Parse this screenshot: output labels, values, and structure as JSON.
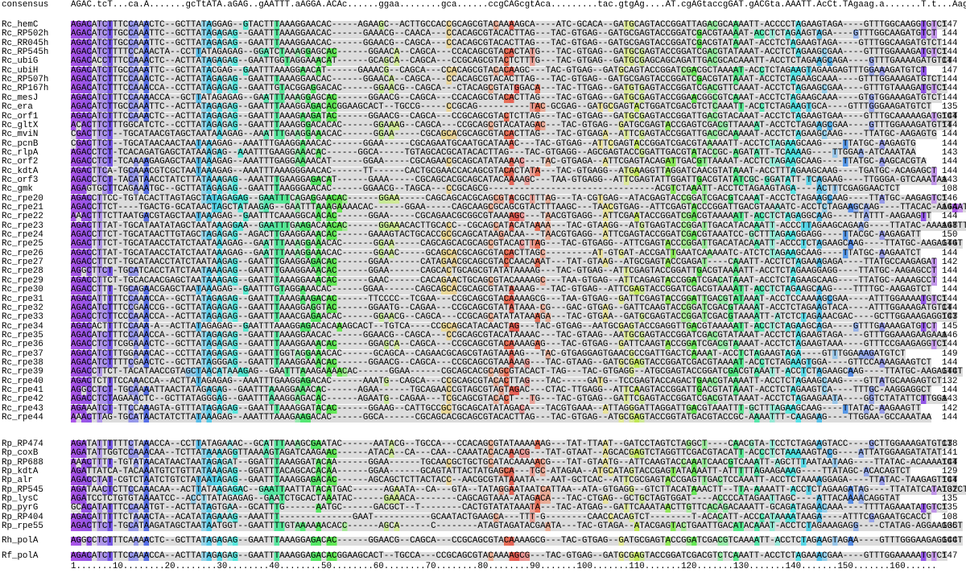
{
  "consensus": {
    "name": "consensus",
    "seq": "AGAC.tcT...ca.A.......gcTtATA.aGAG..gAATTT.aAGGA.ACAc......ggaa........gca......ccgCAGcgtAca.........tac.gtgAg....AT.cgAGtaccgGAT.gACGta.AAATT.AcCt.TAgaag.a.......T.t...Aaga.gtct"
  },
  "groups": [
    {
      "rows": [
        {
          "name": "Rc_hemC",
          "seq": "AGACATCTTTCCAAACTC--GCTTATAGGAG--GTACTTTAAAGGAACAC-----AGAAGC--ACTTGCCACCGCAGCGTACAAAAGCA----ATC-GCACA--GATGCAGTACCGGATTAGACGCAAAATT-ACCCCTAGAAGTAGA----GTTTGGCAAGGTGTCT",
          "length": "147"
        },
        {
          "name": "Rc_RP502h",
          "seq": "AGACATCTTGCCAAATTC--GCTTATAGAGAG--GAATTTAAAGGAACAC------GAAACG--CAACA---CCACAGCGTACACTTAG---TAC-GTGAG--GATGCGAGTACCGGATCGACGTAAAAT-ACCTCTAGAAGTAGA----GTTTGGCAAGATGTCT",
          "length": "144"
        },
        {
          "name": "Rc_RR045h",
          "seq": "AGACATCTTGCCAAATTC--GCTTATAGAGAG--GAATTTAAAGGAACAC------GGAACG--CAGCA---CCACAGCGTACACTTAG---TAC-GTGAG--GATGCGAGTACCGGATCGACGTATAAAT-ACCTCTAGAAGTAGA----GTTTGGCAAGATGTCT",
          "length": "144"
        },
        {
          "name": "Rc_RP545h",
          "seq": "AGACATCTTTTCCAAACTA--CCTTATAGAGAG--GGATCTAAAGGAGCAC------GGAACA--CAGCA---CCACAGCGTACACTATG---TAC-GTGAG--GATGCGAGTACCGGATCGACGTATAAAT-ACCTCTAGAAGCGAA----GTTTGGAAAGATGTCT",
          "length": "144"
        },
        {
          "name": "Rc_ubiG",
          "seq": "AGACACCTTTCCAAACTC--ACTTATAGAGAG--GAATTGGTAGGAAACAT------GCAGCA--CAGCA---CCGCAGCGTACTCTTTG---TAC-GTGAG--GATGCGAGCAGCAGATTGACGCACAAATT-ACCTCTAGAAGCAGA----GTTTGAAAAGATGTCT",
          "length": "144"
        },
        {
          "name": "Rc_ubiH",
          "seq": "AGACATCTTGCCAAATTC--GCTTATACGAG--GAATTTAAAGGAACAT------GAAACG--CAGCA---CCACAGCGTACACAAGC---TAC-GTGAG--GATGCAGTACCGGATCGACGCTAAAAT-ACCTCTAGAAGTAGAAGAGTTTGGAAAGATGTCT",
          "length": "147"
        },
        {
          "name": "Rc_RP507h",
          "seq": "AGACATCTTTCCAAACTC--ACTTATAGAGAG--GAATTTAAAGGAACAC------GGAACA--CAGCA---CCACAGCGTACACTTAG---TAC-GTGAG--GATGCGAGTACCGGATCGACGTATAAAT-ACCTCTAGAAGCAAA----GTTTGGAAAGATGTCT",
          "length": "144"
        },
        {
          "name": "Rc_RP167h",
          "seq": "AGACATCTTTCCAAACCA--CCTTATAGAGAG--GAATTGTACGGAGGACAC------GGAACG--CAGCA---CTACAGCGTATGGACA---TAC-TTGAG--GATGTGAGTACCGGATCGACGTTCAAAT-ACCTCTAGAAGCGAA----GTTTGTAAAGATGTCT",
          "length": "144"
        },
        {
          "name": "Rc_mesJ",
          "seq": "AGACATCTTTCCAAAACCA--GCTTATAGAGAG--GAATTTAAAGGAGCAC------GGAACG--CAGCA---CCACAGCGTACACTTAG---TAC-GTGAG--GATGCGAGTACCGGAACGGCGTCAAAT-ACCTCTAGAAGCAAA----GTGTGGAAAGATGTCT",
          "length": "144"
        },
        {
          "name": "Rc_era",
          "seq": "AGACATCTTGCCAAATTC--ACTTATAGAGAG--GAATTTAAAGGAGACACGGAAGCACT--TGCCG-----CCGCAG----------TAC-GCGAG--GATGCGAGTACTGGATCGACGTCTCAAATT-ACCTCTAGAAGTGCA----GTTTGGGAAGATGTCT",
          "length": "135"
        },
        {
          "name": "Rc_orf1",
          "seq": "AGACATCTTTCCAAACTC--ACTTATAGAGAG--GAATTTAAAGAAGATAC------GGAACG--CAGCA---CCGCAGCGTACTCTTAG---TAC-GTGAG--GATGCGAGTACCGGATTGACGTACAAAT-ACCTCTAGAAGTGAA----GTTTGCAAAAAGATGTCT",
          "length": "144"
        },
        {
          "name": "Rc_gltX",
          "seq": "ACACTTCTTTGGCATCTC--CCTTATAGAGAG--GAATTTAAAGGGACACAC------GGAAAG--CAGCA---CCGCAGCGTACATAGAC---TAC-GTGAG--GATGCGAGTACCGAGTCGACGTTAAAAT-ACCTCTAGAAGCGAA----GTTTGGAAAGATGTTT",
          "length": "144"
        },
        {
          "name": "Rc_mviN",
          "seq": "CGACTTCT--TGCATAACGTAGCTAATAAAGAG--AAATTTGAAGGAAACAC------GGAA-----CGCAGCACGCAGCGTACACTTAG---TAC-GTGAGA--ATTCGAGTACCGGATTGACGCAAAAAT-ACCTCTAGAAGCAAG----TTATGC-AAGAGTG",
          "length": "144"
        },
        {
          "name": "Rc_pcnB",
          "seq": "CGACTTCT--TGCATAACAACTAATAAAGAG--AAATTTGAAGGAAACAC------GGAA-----CGCAGAATGCAATGCATAAAC---TAC-GTGAG--ATTCGAGTACCGGATCGACGTAAAAATT-ACCTCTAGAAGCAAG----TTATGC-AAGAGTG",
          "length": "144"
        },
        {
          "name": "Rc_rlpA",
          "seq": "AGACCTCT-TCACAGATGAGCTATAAAGAG--AAATTTGAAGGAAACAC------GGCA-----TGTAGCACGCATACACTTAG---TAC-GTGAGG--AGCGAGTACCGGATTGACGTATACCGC-AGATATT-TCAAAAG----TTGGAA-ATCAAATAA",
          "length": "143"
        },
        {
          "name": "Rc_orf2",
          "seq": "AGACCTCT-TCAAAAGAGAGCTAATAAAGAG--AAATTTGAGGAAAACAT------GGAA-----CGCAGAACGCAGCATATAAAAC---TAC-GTGAGA--ATTCGAGTACAGATTGACGTTAAAAT-ACCTCTAGAAGCAAG----TTATGC-AAGCACGTA",
          "length": "144"
        },
        {
          "name": "Rc_kdtA",
          "seq": "AGACTTCA-TGCAAACGTCGCTAATAAAGAG--AAATTTAAAGGGAACAC------TT------CACTGCGAACCACAGCGTACACTATA---TAC-GTGAGG--ATGAAGGTTAGGATCAACGTATAAAT-ACCTTTAGAAGCAAG----TGATGC-ACAGAGCT",
          "length": "144"
        },
        {
          "name": "Rc_orf3",
          "seq": "AGACCTCT-TACATAACCTATCTTATAAAGAG--AAATTTGAAGGAGACAT------GAAA-----CGCAGCACGCAGCATACAAAAGC---TAA-GTGAGG--ATTCGAGTATTGGATTGACGTATATCGC-GGATATT-TCAGAAG----TTGGGA-GTCAAATAA",
          "length": "143"
        },
        {
          "name": "Rc_gmk",
          "seq": "AGAGTGCTTCAGAAATGC--GCTTATAGAGAG--GAATTTAAGGGAACAC------GGAACG--TAGCA---CCGCAGCG--------------------------------ACGTCTAAATT-ACCTCTAGAAGTAGA----ACTTTCGAGGAACTCT",
          "length": "108"
        },
        {
          "name": "Rc_rpe20",
          "seq": "AGACCTTCC-TGTACACTTAGTAGCTATAGAGAG--GAATTTCAGAGGAACAC------GGAA-----CAGCAGCACGCAGCGTACGCTTTAG---TA-CGTGAG--ATACGAGTACCGGATCGACGTCAAAT-ACCTCTAGAAGCAAG----TTATGC-AAGAGTCT",
          "length": "146"
        },
        {
          "name": "Rc_rpe21",
          "seq": "AGACCTTCT----TGACTG-GCATAACTAGCTATAAGAG--GAATTTAAAGAAAACAC------GGAA-----CAGCAAGCGCAGCGTACTTTAAGC---TAACGTGAG--ATTCGAGTACCCGGATTGACGTAAAATC-ACCTCTAGAAGCAAG----TTACAC-AAGAATGT",
          "length": "144"
        },
        {
          "name": "Rc_rpe22",
          "seq": "AAACTTTCTTAATGACGTAGCTAATAAAGAG--GAATTTCAAAGGCAACAC------GGAA-----CGCAGAACGCGGCGTAAAAGC---TAACGTGAGG--ATTCGAATACCGGATCGACGTAAAAATT-ACCTCTAGAGGCAAG----TTATTT-AAGAAGTT",
          "length": "144"
        },
        {
          "name": "Rc_rpe23",
          "seq": "AGACTTTAT-TGCATAATATAGCTAATAAAGGAA--GAATTTGAAGACAACAC------GGAAACACTTGCACC--CGCAGCATACATAAAA---TAC-GTAAGG--ATGTGAGTACCGGATTGACATACAAATT-ACCCTTAGAAGCAGAAG----TTATAC-AAAAGTTT",
          "length": "148"
        },
        {
          "name": "Rc_rpe24",
          "seq": "AGACCTTCT-TGCATAACTTGTAGCTAGAGAG--AGACTTGAAGGAAACAC------GAAAGTACTGCACCGCGCAGCATAAGACAA---TAACGTGAGG--ATTCGAGTACCGGATCGACGTAAATCC-GCTTTAGAAGGAGG----TTACGC-AAGAGATT",
          "length": "150"
        },
        {
          "name": "Rc_rpe25",
          "seq": "AGACTTTCT-TGCATAACCTATCTAATAAAGAG--GAATTTAAAGGAAACAC------GGAA-----CAGCAGCACGCAGCGTACACTTAG---TAC-GTGAGG--ATTCGAGTACCCGGATTGACATACAAATT-ACCCTCTAGAAGCAAG----TTATGC-AAGAGTGT",
          "length": "144"
        },
        {
          "name": "Rc_rpe26",
          "seq": "AGACCTTAT-TGCATAACCTATCTAATAAAGAG--GAATTTAAAGGAAACAC------GGAAC-----GCAGCACGCAGCGTACACTTAGC---------AT-GTGAT-ACCGATTGAATCAAAAATC-ATCTCTAGAAGCAAG----TTATGC-AAGAATCT",
          "length": "144"
        },
        {
          "name": "Rc_rpe27",
          "seq": "AGACCTTCT-TGCATAACCTATCTAATAAGAG--GAATTTGAAGGAGACAC------GGAA------CATAGAACGCAGCGTACCAACAAAT---TAT-GTAAG--ATGCGAGTACCGAGAT----CAAATT-ACCTCTAGAAAGAGA----TTATGCCAAGAGAT",
          "length": "142"
        },
        {
          "name": "Rc_rpe28",
          "seq": "AGGCTTCT-TGCATCACCTATCTAATAAAGAG--GAATTTGAAGGAAACAC------GGAA------CAGCACTGCAGCGTATATAAAAG---TAC-GTGAG--ATTCGAGTACCGGATTGACGTAAAATT-ACCTCTAGAAGGAGG----TTATGC-AAGAGCCT",
          "length": "144"
        },
        {
          "name": "Rc_rpe29",
          "seq": "AGACCTTCT-TGCACAACGAGCTAATAAAGAG--GAATTTAAAGGAAACAC------GAAC------CACAGAACTGCAGCGTACAAAAGC---TAA-GTGAG--ATTCAGAGTACCGGATCGACATAAAT-ACCTCTAGAAGCAAG----TTATGC-AAAAGCCT",
          "length": "144"
        },
        {
          "name": "Rc_rpe30",
          "seq": "AGACCTTT-TGCAGAACGAGCTAATAAAGAG--GAATTTGTAGGAAACAC------GGAA------CAGCAGCACGCAGCGTATAAAAG---TAC-GTGAG--ATTCGAGTACCGGATCGACGTAAAATT-ACCTCTAGAAGCAAG----TTTTGC-AAGAGTCT",
          "length": "144"
        },
        {
          "name": "Rc_rpe31",
          "seq": "AGACATTTTTCCAAACCA--GCTTATAGAGAG--GAATTTAAAGAAGACAC------TTCCCC--TCGAA---CCGCAGCGTACAAAAGCG---TAA-GTGAG--GATTCGAGTACCGGATTGACGTATAAAT-ACCTCCAAAAGCGAA----ATTTGGAAAATGTCT",
          "length": "144"
        },
        {
          "name": "Rc_rpe32",
          "seq": "AGACATCTTTCCGAACCG--GCTTATAGAGAG--GAATTTAAAGGAGGTAC------GGAATG--CAGAA---CCGCAGCGTATATAAA-CG---GAC-GTGAG--GATTCAAGTACCGGATCGACGTAAAAT-ACCTCTAGAAGTACA----ATTTGGAAAGATGTCT",
          "length": "144"
        },
        {
          "name": "Rc_rpe33",
          "seq": "AGACCTCTTCCCAAACCA--ACTTATAGAGAG--GAATTTAAACGAGAACAC------GGAACG--CAGCA---CCGCAGCATATATAAAGA---TAC-GTGAA--GATGCGAGTACCGGATCGACGTAAAATT-ATCTCTAGAAACGAC----GCTTGGAAAGAGGTCT",
          "length": "143"
        },
        {
          "name": "Rc_rpe34",
          "seq": "AGACACTTTTCCAAA-A--ACTTATAGAGAG--GAATTTAAAGGAGACACAAAGCACT--TGTCA----CCGCAGCATACAACTAG---TAC-GTGAG--AATGCGAGTACCGAGGTTGACGTAAAAATT-ACCTCTAGAAGCAGA----GTTTGAAAAGATGTCT",
          "length": "145"
        },
        {
          "name": "Rc_rpe35",
          "seq": "AGACATCTTTCCAAACCA--GCTTATAGAGAG--GAATTTAAAGGAACAC------GGAACG--CAGCA---CCGCAGCGTACATAAAAC---TAC-GTAAG--AATGCGAGTACCGGATCGACGTATAAAT-ACCTCTAGAAGTAGA----GTTTGGAAAGAAGAAA",
          "length": "146"
        },
        {
          "name": "Rc_rpe36",
          "seq": "AGACCTCTTCGGAAACTC--GCTTATAGAGAG--GAATTTAAAGGAAACAC------GGAGCA--CAGCA---CCGCAGCGTACAAAAGAG---TAC-GTGAG--GATTCAAGTACCGGATCGACGTAAAAT-ACCTCTAGAAGTAAA----GTTTCCGAAGAGGTCT",
          "length": "144"
        },
        {
          "name": "Rc_rpe37",
          "seq": "AGACATCTTTGGAAACAC--CCTTATAGAGAG--GAATTTGGTAGGAAACAC------GCAGCA--CAGAACGCAGCGTAGTAAAAG---TAC-GTGAGGAGTGAACGCCGATTGACTCAAAAT-ACCTCTAGAAGTAGA----GTTTGGAAAGATGTCT",
          "length": "149"
        },
        {
          "name": "Rc_rpe38",
          "seq": "AGACATCTTTTCGAACTC--GCTTATAGGGAG--GAATTTAAAGGAAACAC------GGAACG--CAGCA---CCGCAGCGTAAAAAG---TAC-GTAAG--GATGCGAGTACCGGATCGACGTAAAAT-ACCTCTAGAAGTGGA----GTTCCAAAAGAAGTCT",
          "length": "144"
        },
        {
          "name": "Rc_rpe39",
          "seq": "AGACCTTCT-TACATAACCGTAGCTAACATAAAGAG--GAATTTAAAGAAAACAC------GGAA------CGCAGCACGCAGCGTACACT-TAG---TAC-GTGAGG--ATGCGAGTACCGGATCGACGTAAATT-ACCTCTAGAAGCAAG----TTATGC-AAGAGTCT",
          "length": "144"
        },
        {
          "name": "Rc_rpe40",
          "seq": "AGACTCTTTCCAAACCA--ACTTATAGAGAG--AAATTTGAAGGAGACAC------AAATG--CAGCA---CCGCAGCGTACACTTAG---TAC-----GATG--TCCGAGTACCAGACTGAACGTAAAATT-ACCTCTAGAAGCAAG----GTTATGCAAGAGTCT",
          "length": "132"
        },
        {
          "name": "Rc_rpe41",
          "seq": "AGGCCTCT-TGCAAAATTAACTATAGAGAG--GAATTTAAAGGAAACAC------AGAA------TGCAGAACCGTAGCGTAGTAGAC---CTAC-TTGAGG--ATTCAAGTACCGGATTGACGTATAAAT-ACCTCTAGAAGTCA----TTTGC-AAGGAGGCT",
          "length": "144"
        },
        {
          "name": "Rc_rpe42",
          "seq": "AGACCTCTAGAAACTC--GCTTATAGGGAG--GAATTTAAAGGAGACAC------AGAATG--CAGAA---TCGCAGCGTACACT---TG---TAC-GTGAG--GATTCGAGTACCGGATCGACGTATAAAT-ACCTCTAGAAGAATA----GGTCTATATTCTTGGA",
          "length": "143"
        },
        {
          "name": "Rc_rpe43",
          "seq": "AGAAATCT-TTCCAAAGTA-GTTTATAGAGAG--GAATTTAAAGGATACAC------GGAAG--CATTGCCGCTGCAGCATATAGACA---TACGTGAAA--ATTAGGGATTAGGATTGACGTAAATTT-GCTTTAGAAGCAAG----TTATAC-AAGAAGTT",
          "length": "142"
        },
        {
          "name": "Rc_rpe44",
          "seq": "AAACTTAG-TGCATAACTATCTTATAAAGAG--AAATTTAAAGAAGACAC------GGCA------CGCAGCACGCAGCGTACACTTAG---TAC-GTGAG--ATGCGAGTACCGGTATGACGTACCGC-AAAATTT-CAAGAAG----TTGGAA-GCCAAATAA",
          "length": "144"
        }
      ]
    },
    {
      "rows": [
        {
          "name": "Rp_RP474",
          "seq": "AGATATTTTTTCTAAACCA--CCTTATAGAAAC--GCATTTAAAGCGAATAC------AATACG--TGCCA---CCACAGCGTATAAAAAAG---TAT-TTAAT--GATCCTAGTCTAGGCT----CAACGTA-TCCTCTAGAAGTACC----GCTTGGAAAGATGTCT",
          "length": "138"
        },
        {
          "name": "Rp_coxB",
          "seq": "AGATATTGGTCCAAACAA--TCTTATAAAAGGTTAAAAGTAGATCAAGAAC------ATACA--CA---CAA--CAAATACACAAACG---TAT-GTAAT--AGCACGAGTCTAGGTTCGACGTACATT-ACCCTCTAAAAAGTACG----ATTATGGAAGATATAT",
          "length": "141"
        },
        {
          "name": "Rp_RP688",
          "seq": "AAACTTTT-TGTATAACATAACTAATAGAGAT--GGATTTAAAGGATACAA------GGAA------TGCAACGCTGCTGCATACAAAAACG---TAT-GTAATG--ATTCAAGTACCAAATCAACGTCAAATT-AGCTTTAATAATAAG----TTATAC-ACAAAATCT",
          "length": "144"
        },
        {
          "name": "Rp_kdtA",
          "seq": "AGATTATCA-TACAAATGTCTGTTATAAAGAG--GGATTTACAGCACACAA------GGAA------GCAGTATTACTATGAGCA---TGC-ATAGAA--ATGCATAGTACCGAGTATAAAATT-ATTTTTAGAAGAAAG----TTATAGC-ACACAGTCT",
          "length": "129"
        },
        {
          "name": "Rp_alr",
          "seq": "AGACCTAT-CGTCTAATCTGTCTATAATAGAG--GAATTTAAAGGAGACAC------AGCAGCTCTTACTACC--AACGCGTATAAATA---AAT-GCTCAC--ATTCGCGAGTACCGAGTTGACTCCAAATT-ACCTCTAAAAGGAGA----TTATAC-TAAGAGTTCT",
          "length": "144"
        },
        {
          "name": "Rp_RP545",
          "seq": "AGATAACTCTTCCAAACAA--ACTTATAAGAGAC--GAATTAATTATACATGAC------AGAATA--CA---GTA--TATAGGAATAATCATTAA--ATA-GTGAGG--GTCTTACATAAACTT--TTA-AAAATT-ACCTCTAGAAGATAG----TTATATCATATGTCT",
          "length": "132"
        },
        {
          "name": "Rp_lysC",
          "seq": "AGATCCTCTGTGTAAAATCC--ACCTTATAGAGAG--GAATCTGCACTAAATAC------GAAACA--------CAGCAGTAAA-ATAGACA---TAC-CTGAG--GCTGCTAGTGGAT----ACCCCATAGAATTAGC----ATTACAAAACAGGTAT",
          "length": "135"
        },
        {
          "name": "Rp_pyrG",
          "seq": "GCACATATTTCCAAATGT--ACTTATAGTGAA--GCATTTG------AATGC------GACGCT--T--------CACTGTATATAAATA---TAC-ATGAG--GATTCAAATAACTTGTTCACAGACAAATT-GCAGATAGAACAAA----TTTTAGAAATATGTCT",
          "length": "135"
        },
        {
          "name": "Rp_RP404",
          "seq": "AGACATTTTTCTAAACTA--ACATATAGAAAG--AAATTT--------------GAAT-----------GCAATACTGAAGCA---TTT-G--------CAACCACAGTCT--------T-ACACATT-ACCCATAAAATAAGA----ATTTCGAGAATGCACCT",
          "length": "108"
        },
        {
          "name": "Rp_rpe55",
          "seq": "AGACTTCT-TGCATAAGATAGCTAATAATGGT--GAATTTTGTAAAAAACACC------AGCA------C--------ATAGTAGATACGAATA---TAC-GTAGA--ATACGAGTACTGAATTGACATACAAAT-ACCTCTAGAAAGAGG----CTATAG-AGGAAGGCT",
          "length": "135"
        }
      ]
    },
    {
      "rows": [
        {
          "name": "Rh_polA",
          "seq": "AGGCCTCTTTCAAAACTC--GCTTATAGAGAG--GAATTTAAAGGAGACAC------GGAACG--CAGCA---CCGCAGCGTACAAAAGCG---TAC-GTGAG--GATGCGAGTACCGGATCGACGTCAAAATT-ACCTCTAGAAGTAGAA----GTTTGGGAAGAGGCCT",
          "length": "144"
        }
      ]
    },
    {
      "rows": [
        {
          "name": "Rf_polA",
          "seq": "AGACATCTTTCCAAACCA--ACTTATAGAGAG--GAATTTAAAGGAGACACGGAAGCACT--TGCCA---CCGCAGCGTACAAAAGCG---TAC-GTGAG--GATGCGAGTACCGGATCGACGTCTCAAATT-ACCTCTAGAAACGAA----GTTTGGAAAAATGTCT",
          "length": "147"
        }
      ]
    }
  ],
  "ruler": "1.......10........20........30........40........50........60........70........80........90.......100.......110.......120.......130.......140.......150.......160......"
}
